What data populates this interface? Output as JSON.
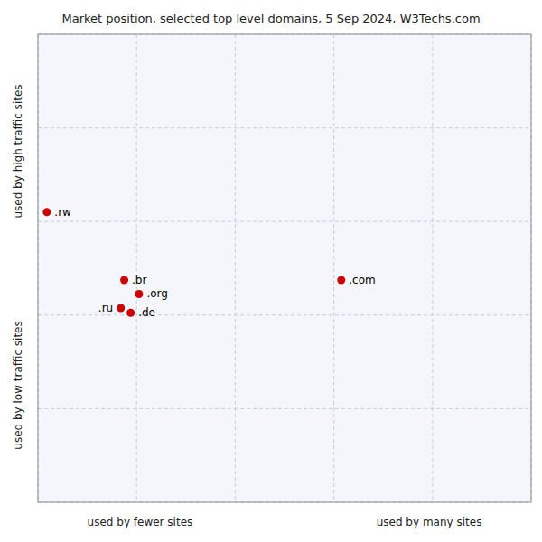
{
  "chart_data": {
    "type": "scatter",
    "title": "Market position, selected top level domains, 5 Sep 2024, W3Techs.com",
    "annotations": [
      "used by fewer sites",
      "used by many sites",
      "used by high traffic sites",
      "used by low traffic sites"
    ],
    "labels": [
      ".rw",
      ".br",
      ".org",
      ".ru",
      ".de",
      ".com"
    ],
    "x": [
      0.018,
      0.175,
      0.205,
      0.168,
      0.188,
      0.615
    ],
    "values": [
      0.62,
      0.475,
      0.445,
      0.415,
      0.405,
      0.475
    ],
    "color": "#cc0000",
    "xlim": [
      0,
      1
    ],
    "ylim": [
      0,
      1
    ],
    "xticks": [
      0,
      0.2,
      0.4,
      0.6,
      0.8,
      1
    ],
    "yticks": [
      0,
      0.2,
      0.4,
      0.6,
      0.8,
      1
    ],
    "grid": true,
    "tick_labels": false
  }
}
